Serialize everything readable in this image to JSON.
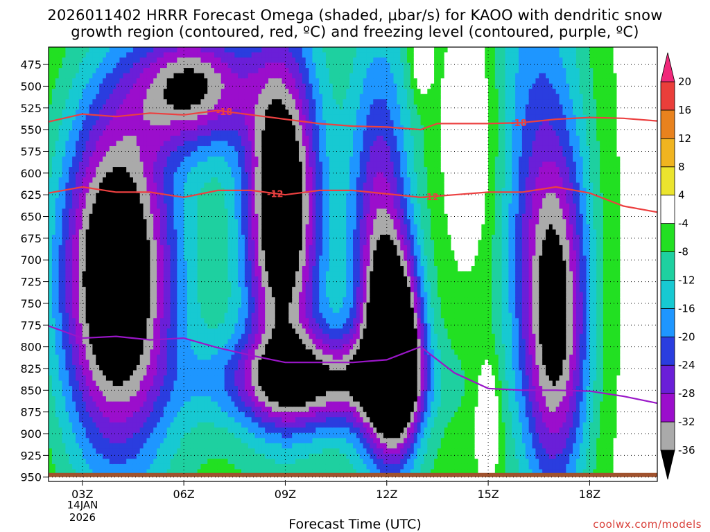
{
  "title_line1": "2026011402 HRRR Forecast Omega (shaded, μbar/s) for KAOO with dendritic snow",
  "title_line2": "growth region (contoured, red, ºC) and freezing level (contoured, purple, ºC)",
  "xlabel": "Forecast Time (UTC)",
  "credit": "coolwx.com/models",
  "date_label_1": "14JAN",
  "date_label_2": "2026",
  "chart_data": {
    "type": "heatmap",
    "x_ticks": [
      {
        "hour": 3,
        "label": "03Z"
      },
      {
        "hour": 6,
        "label": "06Z"
      },
      {
        "hour": 9,
        "label": "09Z"
      },
      {
        "hour": 12,
        "label": "12Z"
      },
      {
        "hour": 15,
        "label": "15Z"
      },
      {
        "hour": 18,
        "label": "18Z"
      }
    ],
    "xlim": [
      2,
      20
    ],
    "y_ticks": [
      475,
      500,
      525,
      550,
      575,
      600,
      625,
      650,
      675,
      700,
      725,
      750,
      775,
      800,
      825,
      850,
      875,
      900,
      925,
      950
    ],
    "ylim": [
      455,
      955
    ],
    "surface_pressure": 950,
    "colorbar": {
      "levels": [
        -36,
        -32,
        -28,
        -24,
        -20,
        -16,
        -12,
        -8,
        -4,
        4,
        8,
        12,
        16,
        20
      ],
      "colors": [
        "#000000",
        "#aaaaaa",
        "#9b0ecc",
        "#6a1fd8",
        "#2a3ddf",
        "#1e96ff",
        "#17c9d2",
        "#1ed0a0",
        "#22e022",
        "#ffffff",
        "#ebe42e",
        "#f0b420",
        "#e8821e",
        "#ea3e3a",
        "#f0287a"
      ],
      "ticks": [
        -36,
        -32,
        -28,
        -24,
        -20,
        -16,
        -12,
        -8,
        -4,
        4,
        8,
        12,
        16,
        20
      ]
    },
    "omega_field": [
      {
        "name": "core_a",
        "peak": -44,
        "center": [
          4.0,
          720
        ],
        "spread": [
          1.7,
          210
        ]
      },
      {
        "name": "core_b",
        "peak": -40,
        "center": [
          8.9,
          640
        ],
        "spread": [
          1.1,
          190
        ]
      },
      {
        "name": "upper_mid",
        "peak": -30,
        "center": [
          6.3,
          500
        ],
        "spread": [
          1.7,
          70
        ]
      },
      {
        "name": "low_band",
        "peak": -28,
        "center": [
          9.8,
          840
        ],
        "spread": [
          2.8,
          55
        ]
      },
      {
        "name": "core_c",
        "peak": -40,
        "center": [
          12.3,
          810
        ],
        "spread": [
          0.75,
          110
        ]
      },
      {
        "name": "column_c",
        "peak": -24,
        "center": [
          11.8,
          690
        ],
        "spread": [
          0.9,
          230
        ]
      },
      {
        "name": "right_plume",
        "peak": -30,
        "center": [
          17.0,
          780
        ],
        "spread": [
          1.0,
          200
        ]
      },
      {
        "name": "right_upper",
        "peak": -14,
        "center": [
          16.4,
          560
        ],
        "spread": [
          1.5,
          300
        ]
      },
      {
        "name": "yellow_top",
        "peak": 8,
        "center": [
          13.0,
          475
        ],
        "spread": [
          0.32,
          40
        ]
      },
      {
        "name": "yellow_low",
        "peak": 10,
        "center": [
          15.0,
          880
        ],
        "spread": [
          0.35,
          70
        ]
      }
    ],
    "contours": [
      {
        "kind": "dendritic",
        "label": "-18",
        "label_positions": [
          7.2,
          15.9
        ],
        "points": [
          [
            2,
            541
          ],
          [
            3,
            532
          ],
          [
            4,
            535
          ],
          [
            5,
            531
          ],
          [
            6,
            533
          ],
          [
            7,
            528
          ],
          [
            8,
            533
          ],
          [
            9,
            538
          ],
          [
            10,
            543
          ],
          [
            11,
            546
          ],
          [
            12,
            547
          ],
          [
            13,
            550
          ],
          [
            13.5,
            543
          ],
          [
            14,
            543
          ],
          [
            15,
            543
          ],
          [
            16,
            542
          ],
          [
            17,
            538
          ],
          [
            18,
            536
          ],
          [
            19,
            537
          ],
          [
            20,
            540
          ]
        ]
      },
      {
        "kind": "dendritic",
        "label": "-12",
        "label_positions": [
          8.7,
          13.3
        ],
        "points": [
          [
            2,
            623
          ],
          [
            3,
            616
          ],
          [
            4,
            622
          ],
          [
            5,
            622
          ],
          [
            6,
            628
          ],
          [
            7,
            620
          ],
          [
            8,
            620
          ],
          [
            9,
            625
          ],
          [
            10,
            620
          ],
          [
            11,
            620
          ],
          [
            12,
            624
          ],
          [
            13,
            628
          ],
          [
            14,
            625
          ],
          [
            15,
            622
          ],
          [
            16,
            622
          ],
          [
            17,
            616
          ],
          [
            18,
            623
          ],
          [
            19,
            638
          ],
          [
            20,
            645
          ]
        ]
      },
      {
        "kind": "freezing",
        "points": [
          [
            2,
            776
          ],
          [
            3,
            790
          ],
          [
            4,
            788
          ],
          [
            5,
            792
          ],
          [
            6,
            790
          ],
          [
            7,
            801
          ],
          [
            8,
            810
          ],
          [
            9,
            818
          ],
          [
            10,
            818
          ],
          [
            11,
            818
          ],
          [
            12,
            815
          ],
          [
            13,
            800
          ],
          [
            14,
            830
          ],
          [
            15,
            848
          ],
          [
            16,
            850
          ],
          [
            17,
            850
          ],
          [
            18,
            851
          ],
          [
            19,
            857
          ],
          [
            20,
            865
          ]
        ]
      }
    ]
  }
}
